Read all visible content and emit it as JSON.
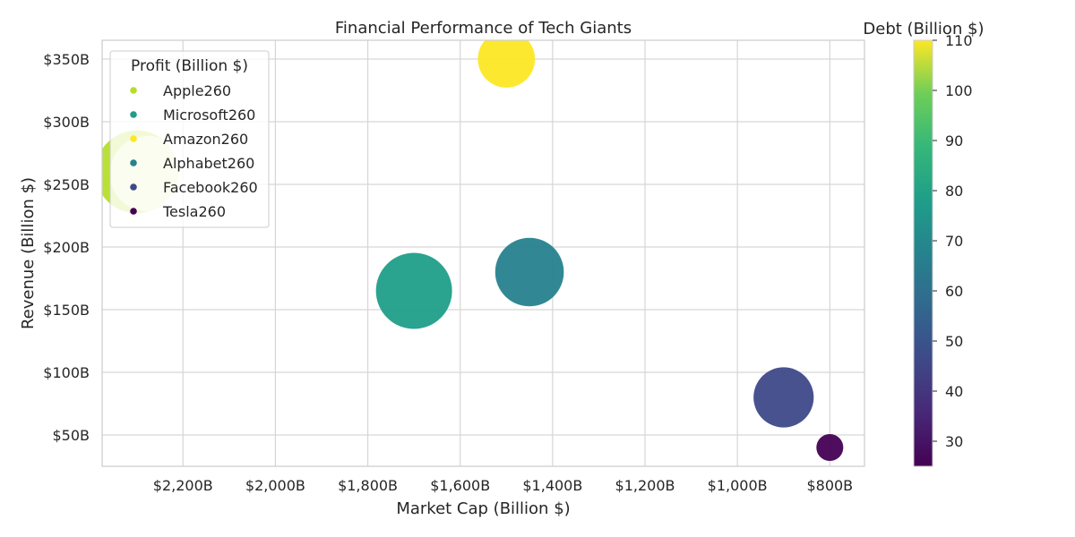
{
  "chart_data": {
    "type": "scatter",
    "title": "Financial Performance of Tech Giants",
    "xlabel": "Market Cap (Billion $)",
    "ylabel": "Revenue (Billion $)",
    "x_inverted": true,
    "xlim": [
      2375,
      725
    ],
    "ylim": [
      25,
      365
    ],
    "x_ticks": [
      {
        "value": 2200,
        "label": "$2,200B"
      },
      {
        "value": 2000,
        "label": "$2,000B"
      },
      {
        "value": 1800,
        "label": "$1,800B"
      },
      {
        "value": 1600,
        "label": "$1,600B"
      },
      {
        "value": 1400,
        "label": "$1,400B"
      },
      {
        "value": 1200,
        "label": "$1,200B"
      },
      {
        "value": 1000,
        "label": "$1,000B"
      },
      {
        "value": 800,
        "label": "$800B"
      }
    ],
    "y_ticks": [
      {
        "value": 50,
        "label": "$50B"
      },
      {
        "value": 100,
        "label": "$100B"
      },
      {
        "value": 150,
        "label": "$150B"
      },
      {
        "value": 200,
        "label": "$200B"
      },
      {
        "value": 250,
        "label": "$250B"
      },
      {
        "value": 300,
        "label": "$300B"
      },
      {
        "value": 350,
        "label": "$350B"
      }
    ],
    "grid": true,
    "legend": {
      "title": "Profit (Billion $)",
      "placement": "top-left",
      "entries": [
        "Apple260",
        "Microsoft260",
        "Amazon260",
        "Alphabet260",
        "Facebook260",
        "Tesla260"
      ]
    },
    "colorbar": {
      "title": "Debt (Billion $)",
      "min": 25,
      "max": 110,
      "ticks": [
        30,
        40,
        50,
        60,
        70,
        80,
        90,
        100,
        110
      ],
      "colormap": "viridis"
    },
    "series": [
      {
        "name": "Apple260",
        "market_cap": 2300,
        "revenue": 260,
        "profit": 95,
        "debt": 100,
        "color": "#b5de2b"
      },
      {
        "name": "Microsoft260",
        "market_cap": 1700,
        "revenue": 165,
        "profit": 80,
        "debt": 70,
        "color": "#1f9e89"
      },
      {
        "name": "Amazon260",
        "market_cap": 1500,
        "revenue": 350,
        "profit": 45,
        "debt": 110,
        "color": "#fde725"
      },
      {
        "name": "Alphabet260",
        "market_cap": 1450,
        "revenue": 180,
        "profit": 65,
        "debt": 60,
        "color": "#26828e"
      },
      {
        "name": "Facebook260",
        "market_cap": 900,
        "revenue": 80,
        "profit": 50,
        "debt": 40,
        "color": "#3e4989"
      },
      {
        "name": "Tesla260",
        "market_cap": 800,
        "revenue": 40,
        "profit": 10,
        "debt": 25,
        "color": "#440154"
      }
    ]
  }
}
